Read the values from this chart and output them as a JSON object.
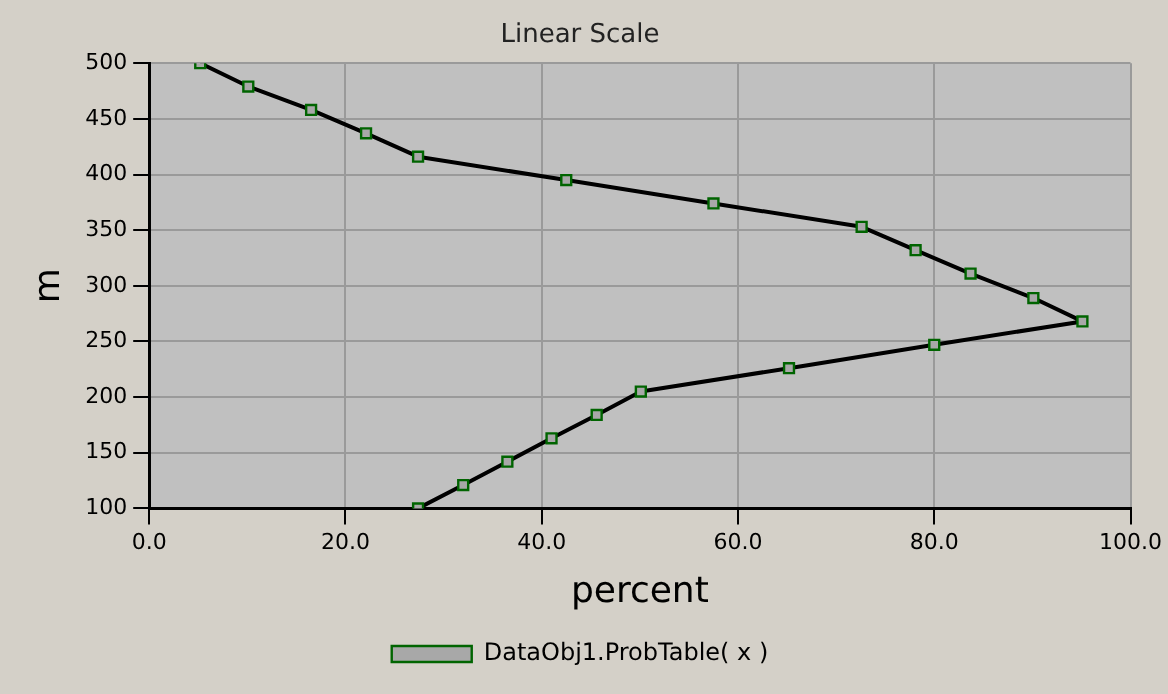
{
  "chart_data": {
    "type": "line",
    "title": "Linear Scale",
    "xlabel": "percent",
    "ylabel": "m",
    "xlim": [
      0,
      100
    ],
    "xticks": [
      {
        "value": 0,
        "label": "0.0"
      },
      {
        "value": 20,
        "label": "20.0"
      },
      {
        "value": 40,
        "label": "40.0"
      },
      {
        "value": 60,
        "label": "60.0"
      },
      {
        "value": 80,
        "label": "80.0"
      },
      {
        "value": 100,
        "label": "100.0"
      }
    ],
    "ylim": [
      100,
      500
    ],
    "yticks": [
      100,
      150,
      200,
      250,
      300,
      350,
      400,
      450,
      500
    ],
    "grid": true,
    "legend": "bottom",
    "marker": "square",
    "line_style": "solid",
    "series": [
      {
        "name": "DataObj1.ProbTable( x )",
        "color": "#000000",
        "x": [
          5.2,
          10.1,
          16.5,
          22.1,
          27.4,
          42.5,
          57.5,
          72.6,
          78.1,
          83.7,
          90.1,
          95.1,
          80,
          65.2,
          50.1,
          45.6,
          41,
          36.5,
          32,
          27.4
        ],
        "values": [
          500,
          479,
          458,
          437,
          416,
          395,
          374,
          353,
          332,
          311,
          289,
          268,
          247,
          226,
          205,
          184,
          163,
          142,
          121,
          100
        ]
      }
    ]
  }
}
